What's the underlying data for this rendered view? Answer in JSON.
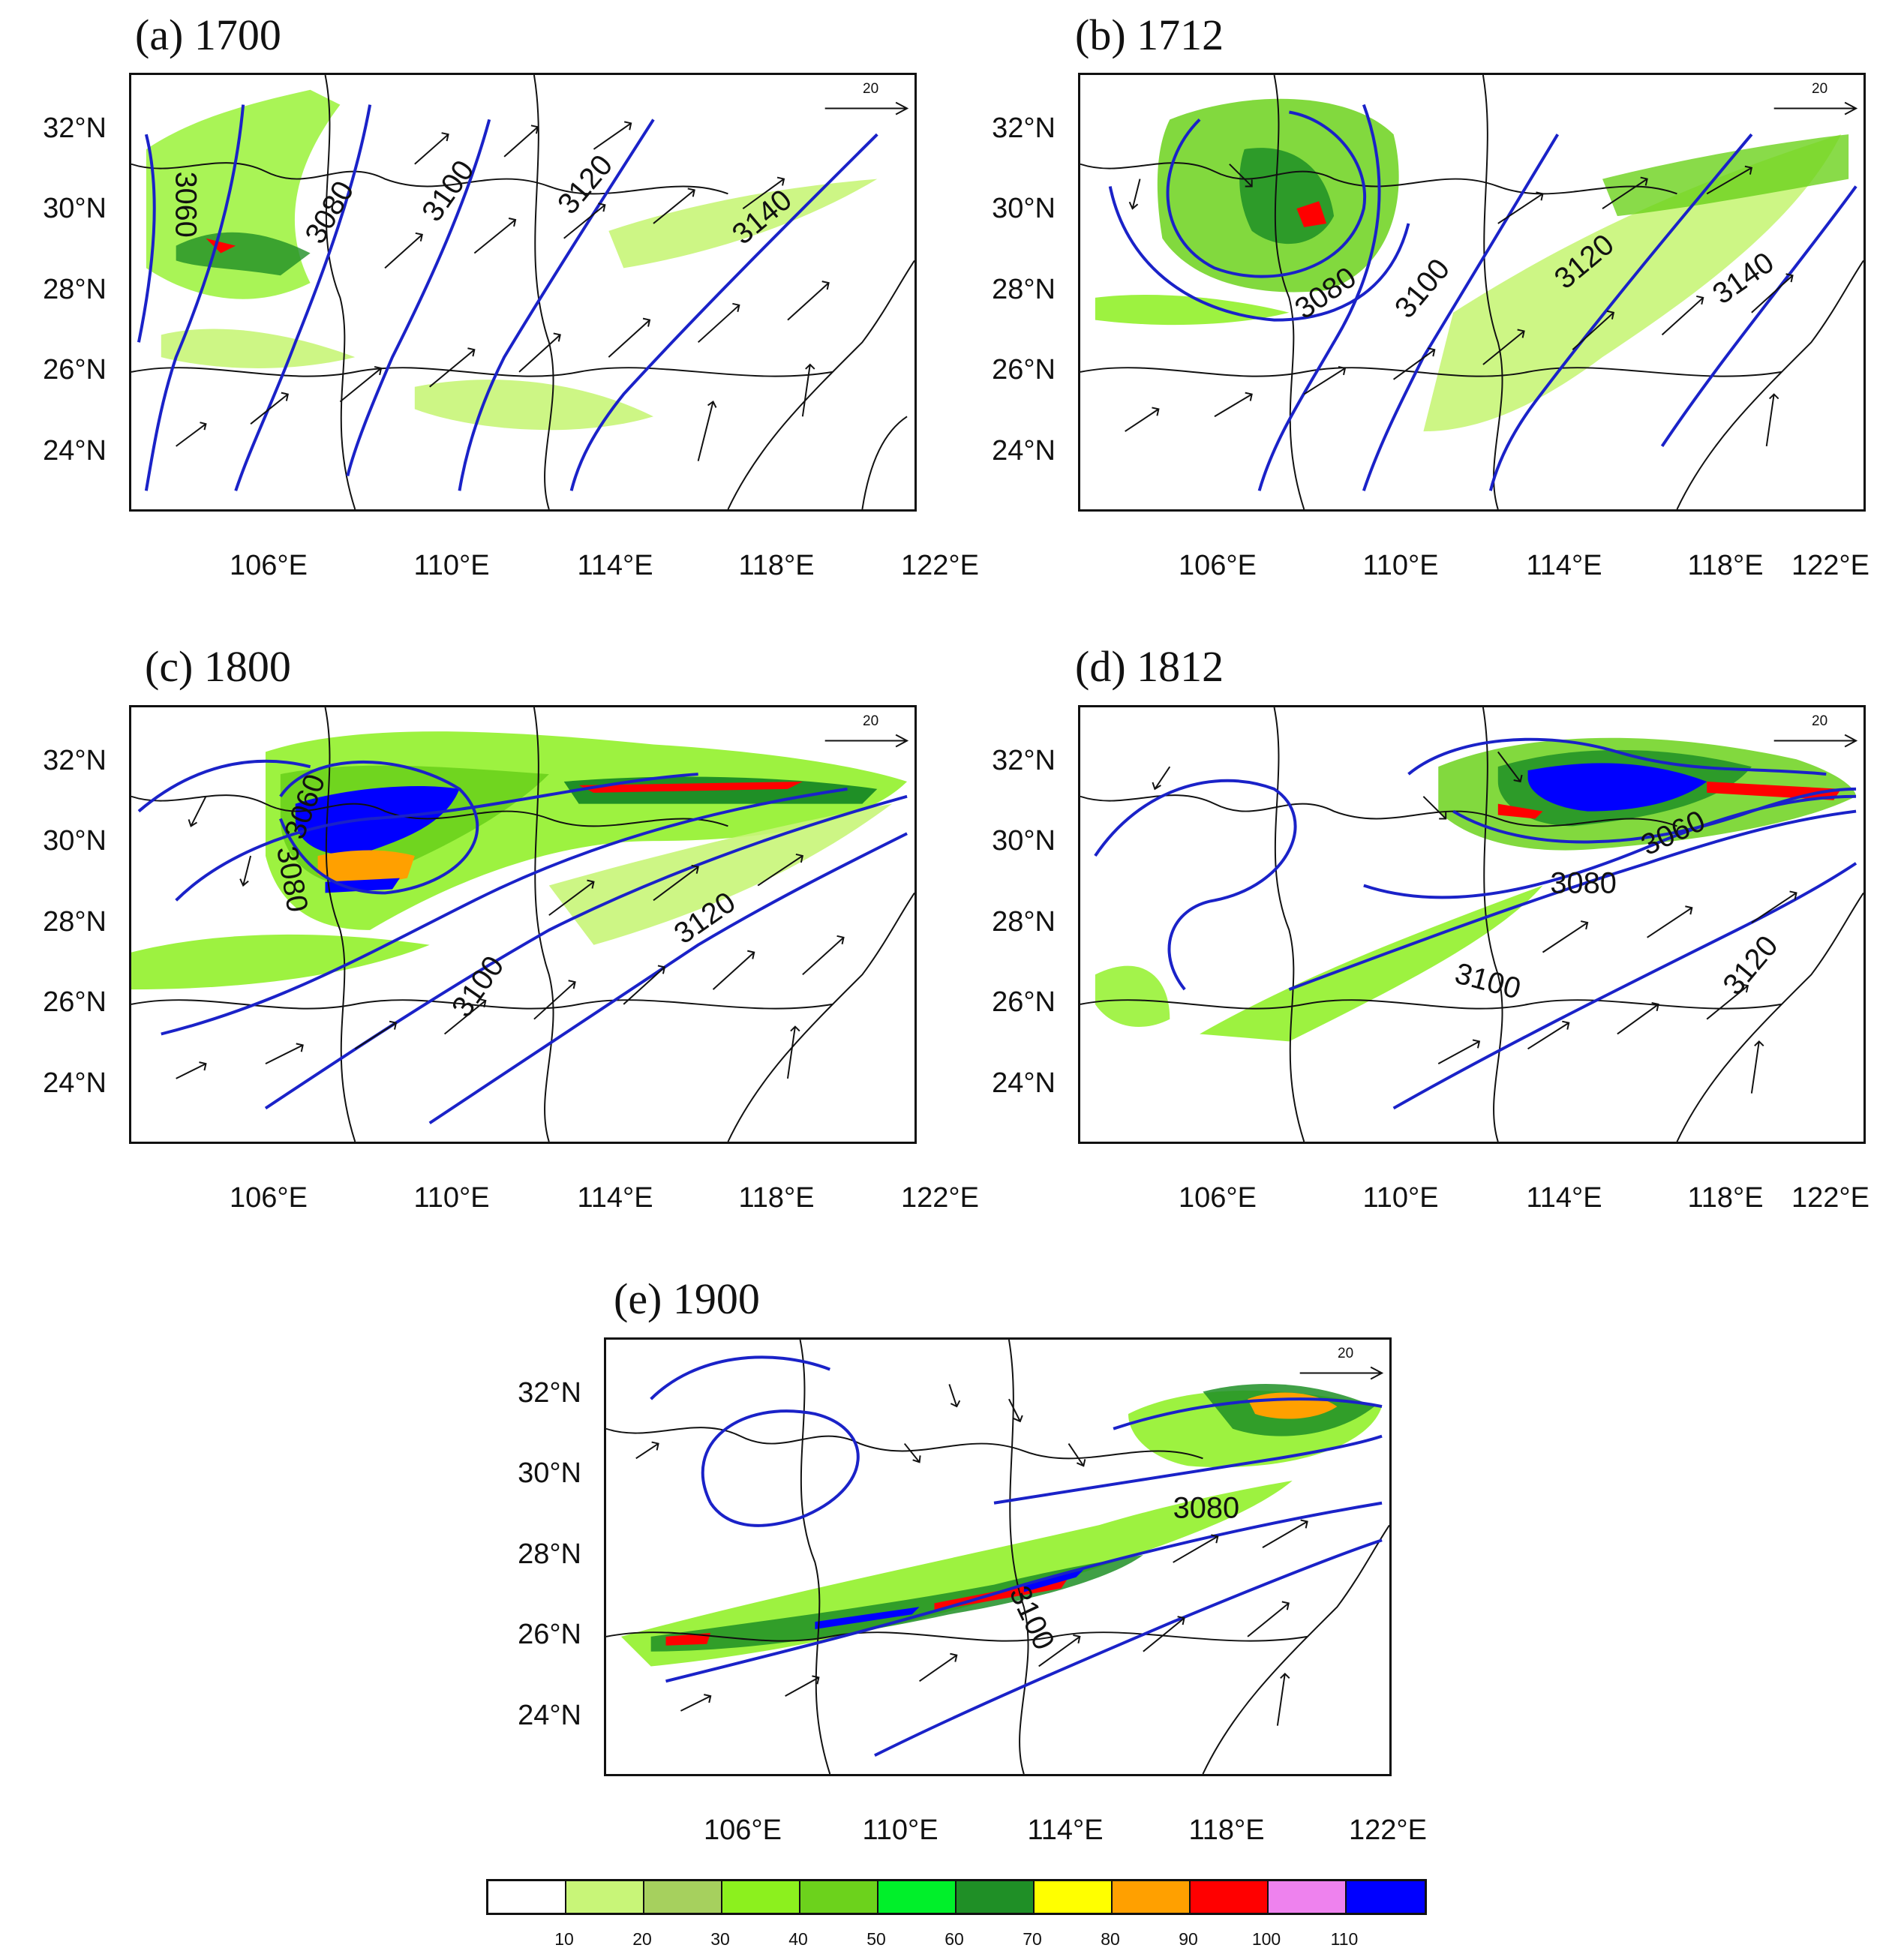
{
  "panels": [
    {
      "id": "a",
      "title": "(a) 1700",
      "contours": [
        {
          "label": "3060"
        },
        {
          "label": "3080"
        },
        {
          "label": "3100"
        },
        {
          "label": "3120"
        },
        {
          "label": "3140"
        }
      ]
    },
    {
      "id": "b",
      "title": "(b) 1712",
      "contours": [
        {
          "label": "3080"
        },
        {
          "label": "3100"
        },
        {
          "label": "3120"
        },
        {
          "label": "3140"
        }
      ]
    },
    {
      "id": "c",
      "title": "(c) 1800",
      "contours": [
        {
          "label": "3060"
        },
        {
          "label": "3080"
        },
        {
          "label": "3100"
        },
        {
          "label": "3120"
        }
      ]
    },
    {
      "id": "d",
      "title": "(d) 1812",
      "contours": [
        {
          "label": "3060"
        },
        {
          "label": "3080"
        },
        {
          "label": "3100"
        },
        {
          "label": "3120"
        }
      ]
    },
    {
      "id": "e",
      "title": "(e) 1900",
      "contours": [
        {
          "label": "3080"
        },
        {
          "label": "3100"
        }
      ]
    }
  ],
  "axes": {
    "lat_labels": [
      "32°N",
      "30°N",
      "28°N",
      "26°N",
      "24°N"
    ],
    "lon_labels": [
      "106°E",
      "110°E",
      "114°E",
      "118°E",
      "122°E"
    ],
    "lat_range": [
      22.5,
      33.3
    ],
    "lon_range": [
      102.8,
      122.3
    ]
  },
  "reference_vector": {
    "label": "20"
  },
  "colorbar": {
    "labels": [
      "10",
      "20",
      "30",
      "40",
      "50",
      "60",
      "70",
      "80",
      "90",
      "100",
      "110"
    ],
    "colors": [
      "#ffffff",
      "#c8f578",
      "#a6d05e",
      "#8cf01e",
      "#6cd21c",
      "#00f02a",
      "#1f8f26",
      "#ffff00",
      "#ffa000",
      "#ff0000",
      "#ee82ee",
      "#0000ff"
    ]
  },
  "styles": {
    "contour_color": "#1a22c8",
    "border_color": "#111111",
    "vector_color": "#111111"
  }
}
